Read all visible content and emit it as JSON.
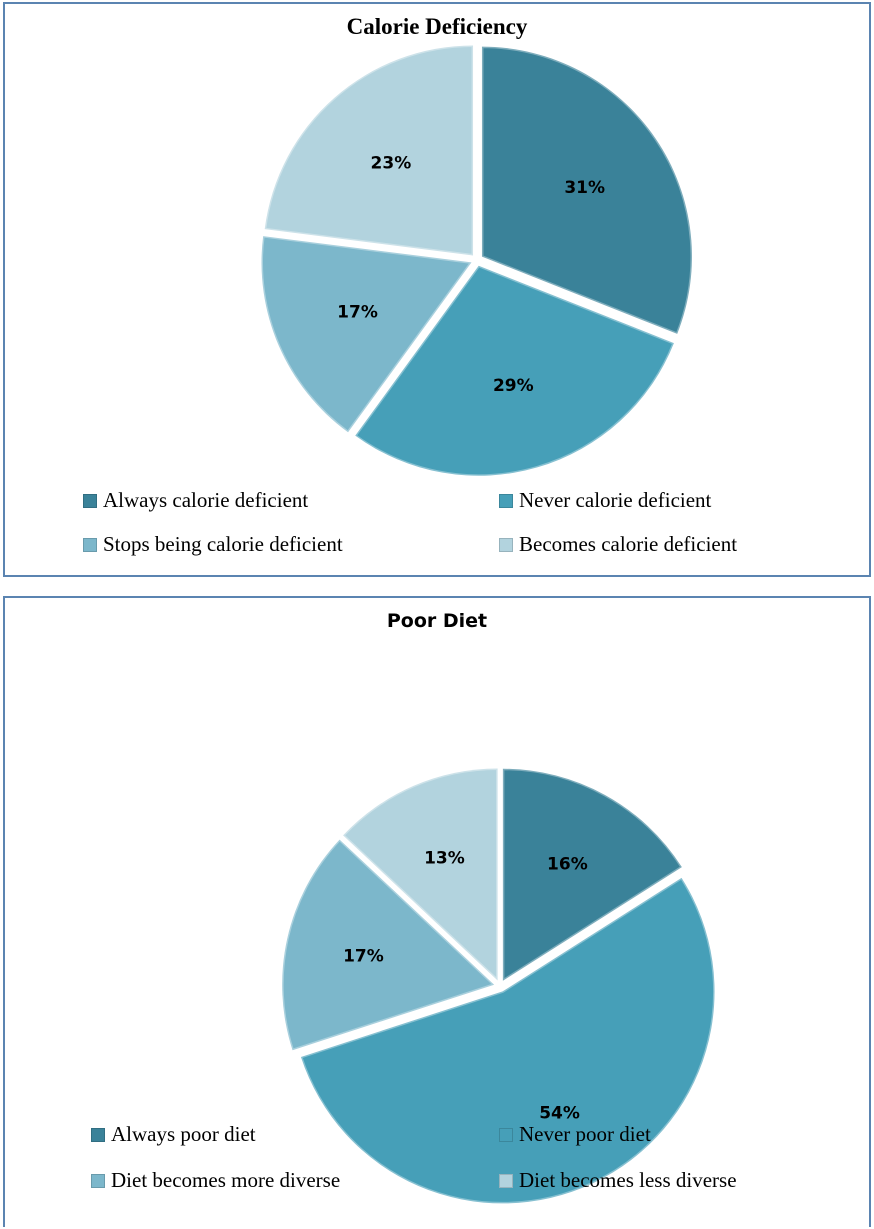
{
  "chart_data": [
    {
      "type": "pie",
      "title": "Calorie Deficiency",
      "categories": [
        "Always calorie deficient",
        "Never calorie deficient",
        "Stops being calorie deficient",
        "Becomes calorie deficient"
      ],
      "values": [
        31,
        29,
        17,
        23
      ],
      "labels": [
        "31%",
        "29%",
        "17%",
        "23%"
      ],
      "colors": [
        "#3a8299",
        "#469fb8",
        "#7cb7cb",
        "#b2d3de"
      ],
      "legend_position": "bottom"
    },
    {
      "type": "pie",
      "title": "Poor Diet",
      "categories": [
        "Always poor diet",
        "Never poor diet",
        "Diet becomes more diverse",
        "Diet becomes less diverse"
      ],
      "values": [
        16,
        54,
        17,
        13
      ],
      "labels": [
        "16%",
        "54%",
        "17%",
        "13%"
      ],
      "colors": [
        "#3a8299",
        "#469fb8",
        "#7cb7cb",
        "#b2d3de"
      ],
      "legend_position": "bottom"
    }
  ]
}
